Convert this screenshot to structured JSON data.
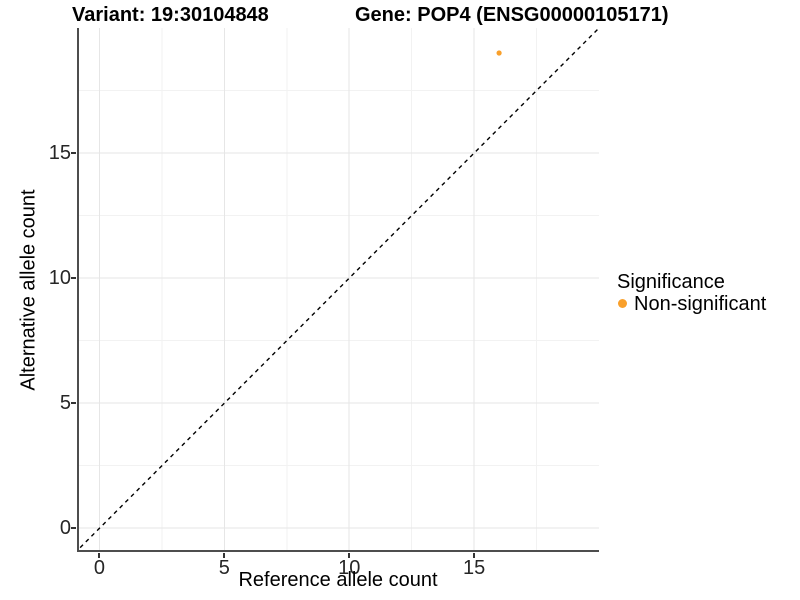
{
  "title": {
    "variant": "Variant: 19:30104848",
    "gene": "Gene: POP4 (ENSG00000105171)"
  },
  "chart_data": {
    "type": "scatter",
    "title_left": "Variant: 19:30104848",
    "title_right": "Gene: POP4 (ENSG00000105171)",
    "xlabel": "Reference allele count",
    "ylabel": "Alternative allele count",
    "xlim": [
      -0.9,
      20.0
    ],
    "ylim": [
      -0.95,
      20.0
    ],
    "x_major_ticks": [
      0,
      5,
      10,
      15
    ],
    "y_major_ticks": [
      0,
      5,
      10,
      15
    ],
    "x_minor_ticks": [
      2.5,
      7.5,
      12.5,
      17.5
    ],
    "y_minor_ticks": [
      2.5,
      7.5,
      12.5,
      17.5
    ],
    "grid": true,
    "identity_line": {
      "type": "dashed",
      "color": "#000000",
      "from": -1,
      "to": 20
    },
    "series": [
      {
        "name": "Non-significant",
        "color": "#F9A02B",
        "points": [
          {
            "x": 16,
            "y": 19
          }
        ]
      }
    ],
    "legend": {
      "position": "right",
      "title": "Significance",
      "items": [
        {
          "label": "Non-significant",
          "color": "#F9A02B"
        }
      ]
    },
    "colors": {
      "axis_line": "#4d4d4d",
      "tick_mark": "#333333",
      "grid_major": "#e6e6e6",
      "grid_minor": "#f2f2f2",
      "tick_text": "#262626",
      "background": "#ffffff"
    }
  }
}
